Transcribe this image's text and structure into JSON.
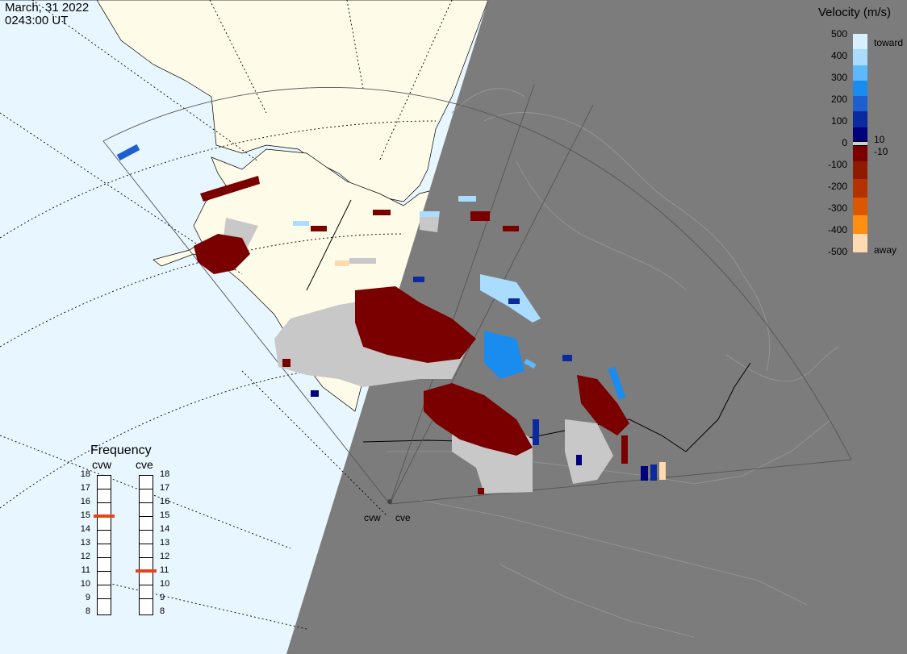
{
  "header": {
    "date": "March, 31 2022",
    "time": "0243:00 UT"
  },
  "velocity_scale": {
    "title": "Velocity (m/s)",
    "ticks": [
      "500",
      "400",
      "300",
      "200",
      "100",
      "0",
      "-100",
      "-200",
      "-300",
      "-400",
      "-500"
    ],
    "toward_label": "toward",
    "away_label": "away",
    "pos_thresh": "10",
    "neg_thresh": "-10",
    "colors": [
      "#d7efff",
      "#a9dcff",
      "#5db9ff",
      "#1a8cf0",
      "#1c5fcf",
      "#0b2aa0",
      "#00007a",
      "#7a0000",
      "#8f1a00",
      "#b43200",
      "#dd5600",
      "#ff8f10",
      "#ffd9b0"
    ]
  },
  "frequency": {
    "title": "Frequency",
    "radars": [
      {
        "name": "cvw",
        "current_mhz": 15
      },
      {
        "name": "cve",
        "current_mhz": 11
      }
    ],
    "levels": [
      "18",
      "17",
      "16",
      "15",
      "14",
      "13",
      "12",
      "11",
      "10",
      "9",
      "8"
    ],
    "marker_color": "#e8431a"
  },
  "stations": [
    {
      "name": "cvw"
    },
    {
      "name": "cve"
    }
  ],
  "colors": {
    "night": "#7c7c7c",
    "land": "#fefbe8",
    "ocean": "#e8f6ff",
    "ground_scatter": "#c8c8c8"
  }
}
